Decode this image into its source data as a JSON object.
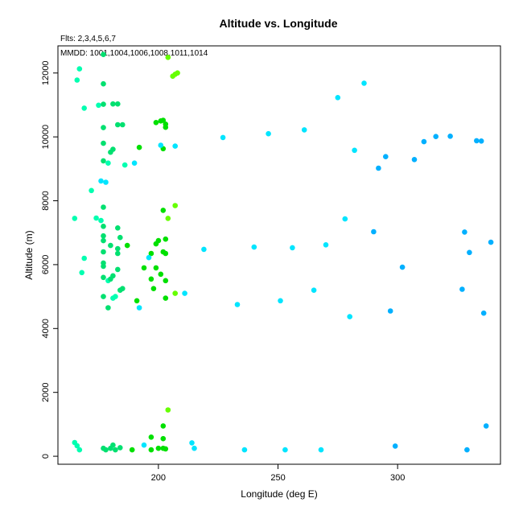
{
  "chart_data": {
    "type": "scatter",
    "title": "Altitude vs. Longitude",
    "annotations": [
      "Flts: 2,3,4,5,6,7",
      "MMDD: 1001,1004,1006,1008,1011,1014"
    ],
    "xlabel": "Longitude (deg E)",
    "ylabel": "Altitude (m)",
    "xlim": [
      158,
      343
    ],
    "ylim": [
      -250,
      12850
    ],
    "x_ticks": [
      200,
      250,
      300
    ],
    "y_ticks": [
      0,
      2000,
      4000,
      6000,
      8000,
      10000,
      12000
    ],
    "grid": false,
    "legend": "none",
    "color_scale": [
      "#00b0ff",
      "#00e5ff",
      "#00ffb0",
      "#00e070",
      "#00e000",
      "#66ff00"
    ],
    "points": [
      [
        166,
        11780,
        2
      ],
      [
        167,
        12130,
        2
      ],
      [
        169,
        10900,
        2
      ],
      [
        175,
        10990,
        2
      ],
      [
        177,
        12580,
        3
      ],
      [
        177,
        11660,
        3
      ],
      [
        177,
        11020,
        3
      ],
      [
        177,
        10290,
        3
      ],
      [
        177,
        9800,
        3
      ],
      [
        177,
        9250,
        3
      ],
      [
        179,
        9180,
        2
      ],
      [
        180,
        9520,
        3
      ],
      [
        181,
        9610,
        3
      ],
      [
        181,
        11030,
        3
      ],
      [
        183,
        11030,
        3
      ],
      [
        183,
        10380,
        3
      ],
      [
        185,
        10380,
        3
      ],
      [
        186,
        9120,
        2
      ],
      [
        190,
        9180,
        1
      ],
      [
        192,
        9670,
        4
      ],
      [
        199,
        10450,
        4
      ],
      [
        201,
        10500,
        4
      ],
      [
        202,
        10520,
        4
      ],
      [
        203,
        10300,
        4
      ],
      [
        203,
        10400,
        4
      ],
      [
        202,
        9630,
        4
      ],
      [
        204,
        12490,
        5
      ],
      [
        206,
        11900,
        5
      ],
      [
        207,
        11960,
        5
      ],
      [
        208,
        12000,
        5
      ],
      [
        201,
        9740,
        1
      ],
      [
        207,
        9710,
        1
      ],
      [
        227,
        9980,
        1
      ],
      [
        176,
        8620,
        1
      ],
      [
        178,
        8580,
        1
      ],
      [
        172,
        8320,
        2
      ],
      [
        165,
        7450,
        2
      ],
      [
        174,
        7460,
        2
      ],
      [
        176,
        7380,
        2
      ],
      [
        177,
        7800,
        3
      ],
      [
        177,
        7200,
        3
      ],
      [
        177,
        6900,
        3
      ],
      [
        177,
        6750,
        3
      ],
      [
        177,
        6400,
        3
      ],
      [
        177,
        6050,
        3
      ],
      [
        177,
        5950,
        3
      ],
      [
        177,
        5600,
        3
      ],
      [
        177,
        5000,
        3
      ],
      [
        179,
        5500,
        2
      ],
      [
        180,
        6600,
        3
      ],
      [
        180,
        5550,
        3
      ],
      [
        181,
        5650,
        3
      ],
      [
        181,
        4950,
        2
      ],
      [
        182,
        5000,
        2
      ],
      [
        183,
        7150,
        3
      ],
      [
        183,
        6350,
        3
      ],
      [
        183,
        6500,
        3
      ],
      [
        183,
        5850,
        3
      ],
      [
        184,
        6850,
        3
      ],
      [
        184,
        5200,
        3
      ],
      [
        185,
        5250,
        3
      ],
      [
        179,
        4650,
        3
      ],
      [
        168,
        5750,
        2
      ],
      [
        169,
        6200,
        2
      ],
      [
        187,
        6600,
        4
      ],
      [
        191,
        4870,
        4
      ],
      [
        194,
        5900,
        4
      ],
      [
        197,
        6350,
        4
      ],
      [
        197,
        5550,
        4
      ],
      [
        198,
        5250,
        4
      ],
      [
        199,
        6650,
        4
      ],
      [
        199,
        5900,
        4
      ],
      [
        200,
        6750,
        4
      ],
      [
        201,
        5700,
        4
      ],
      [
        202,
        7700,
        4
      ],
      [
        202,
        6400,
        4
      ],
      [
        203,
        6350,
        4
      ],
      [
        203,
        6800,
        4
      ],
      [
        203,
        4950,
        4
      ],
      [
        203,
        5500,
        4
      ],
      [
        204,
        7450,
        5
      ],
      [
        207,
        7850,
        5
      ],
      [
        207,
        5100,
        5
      ],
      [
        192,
        4650,
        1
      ],
      [
        196,
        6220,
        1
      ],
      [
        211,
        5100,
        1
      ],
      [
        219,
        6480,
        1
      ],
      [
        233,
        4750,
        1
      ],
      [
        240,
        6550,
        1
      ],
      [
        251,
        4870,
        1
      ],
      [
        256,
        6530,
        1
      ],
      [
        265,
        5200,
        1
      ],
      [
        270,
        6620,
        1
      ],
      [
        278,
        7430,
        1
      ],
      [
        280,
        4370,
        1
      ],
      [
        165,
        430,
        2
      ],
      [
        166,
        330,
        2
      ],
      [
        167,
        200,
        2
      ],
      [
        177,
        250,
        3
      ],
      [
        178,
        200,
        3
      ],
      [
        180,
        250,
        3
      ],
      [
        181,
        350,
        3
      ],
      [
        182,
        200,
        3
      ],
      [
        184,
        270,
        3
      ],
      [
        189,
        200,
        4
      ],
      [
        194,
        350,
        1
      ],
      [
        197,
        200,
        4
      ],
      [
        197,
        600,
        4
      ],
      [
        200,
        250,
        4
      ],
      [
        202,
        250,
        4
      ],
      [
        202,
        950,
        4
      ],
      [
        202,
        550,
        4
      ],
      [
        203,
        230,
        4
      ],
      [
        204,
        1450,
        5
      ],
      [
        214,
        420,
        1
      ],
      [
        215,
        250,
        1
      ],
      [
        236,
        200,
        1
      ],
      [
        253,
        200,
        1
      ],
      [
        268,
        200,
        1
      ],
      [
        246,
        10100,
        1
      ],
      [
        261,
        10220,
        1
      ],
      [
        275,
        11230,
        1
      ],
      [
        282,
        9580,
        1
      ],
      [
        286,
        11680,
        1
      ],
      [
        290,
        7030,
        0
      ],
      [
        292,
        9020,
        0
      ],
      [
        295,
        9380,
        0
      ],
      [
        297,
        4550,
        0
      ],
      [
        299,
        320,
        0
      ],
      [
        302,
        5920,
        0
      ],
      [
        307,
        9290,
        0
      ],
      [
        311,
        9850,
        0
      ],
      [
        316,
        10010,
        0
      ],
      [
        322,
        10020,
        0
      ],
      [
        327,
        5230,
        0
      ],
      [
        328,
        7020,
        0
      ],
      [
        329,
        200,
        0
      ],
      [
        330,
        6380,
        0
      ],
      [
        333,
        9880,
        0
      ],
      [
        335,
        9870,
        0
      ],
      [
        336,
        4480,
        0
      ],
      [
        337,
        950,
        0
      ],
      [
        339,
        6700,
        0
      ]
    ]
  }
}
